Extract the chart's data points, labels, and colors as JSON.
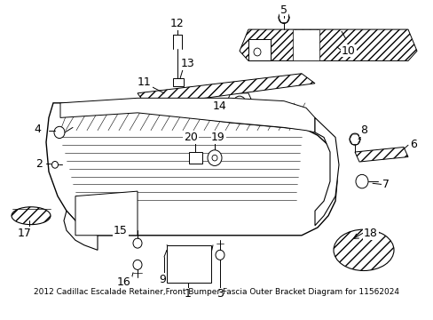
{
  "title": "2012 Cadillac Escalade Retainer,Front Bumper Fascia Outer Bracket Diagram for 11562024",
  "bg_color": "#ffffff",
  "line_color": "#000000",
  "fig_width": 4.89,
  "fig_height": 3.6,
  "dpi": 100
}
